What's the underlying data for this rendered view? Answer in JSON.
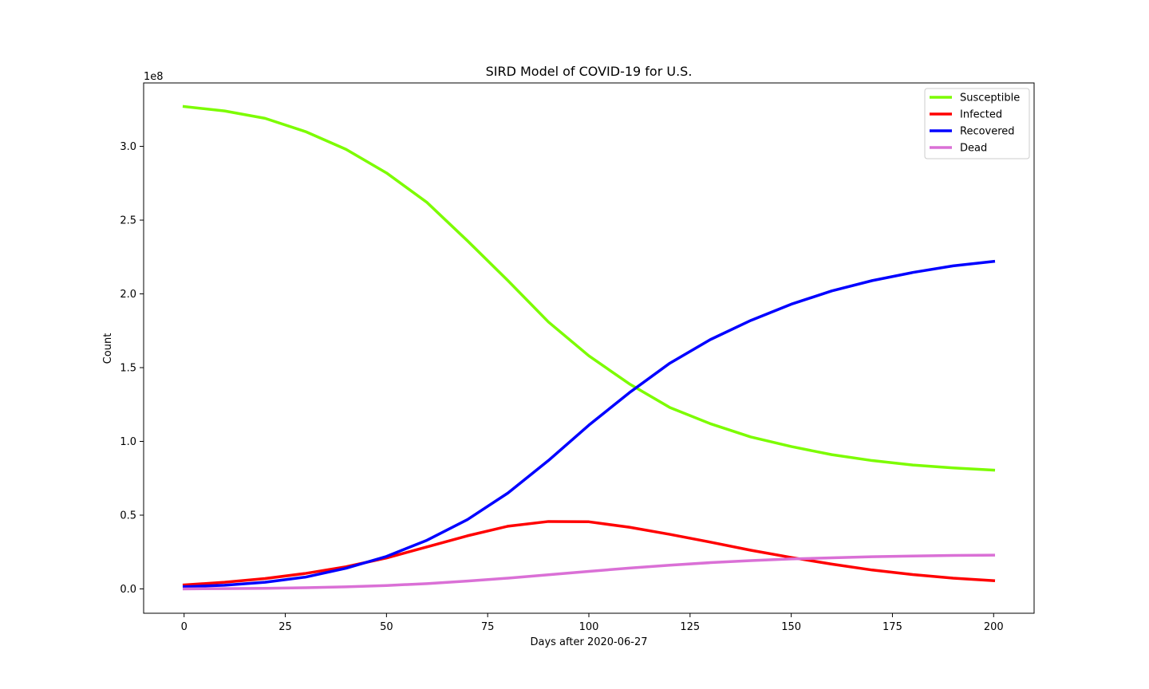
{
  "chart_data": {
    "type": "line",
    "title": "SIRD Model of COVID-19 for U.S.",
    "xlabel": "Days after 2020-06-27",
    "ylabel": "Count",
    "y_offset_label": "1e8",
    "xlim": [
      -10,
      210
    ],
    "ylim": [
      -0.165,
      3.43
    ],
    "x_ticks": [
      0,
      25,
      50,
      75,
      100,
      125,
      150,
      175,
      200
    ],
    "x_tick_labels": [
      "0",
      "25",
      "50",
      "75",
      "100",
      "125",
      "150",
      "175",
      "200"
    ],
    "y_ticks": [
      0.0,
      0.5,
      1.0,
      1.5,
      2.0,
      2.5,
      3.0
    ],
    "y_tick_labels": [
      "0.0",
      "0.5",
      "1.0",
      "1.5",
      "2.0",
      "2.5",
      "3.0"
    ],
    "y_scale_note": "values in units of 1e8",
    "grid": false,
    "legend_position": "top-right",
    "x": [
      0,
      10,
      20,
      30,
      40,
      50,
      60,
      70,
      80,
      90,
      100,
      110,
      120,
      130,
      140,
      150,
      160,
      170,
      180,
      190,
      200
    ],
    "series": [
      {
        "name": "Susceptible",
        "color": "#7cfc00",
        "values": [
          3.27,
          3.24,
          3.19,
          3.1,
          2.98,
          2.82,
          2.62,
          2.36,
          2.09,
          1.81,
          1.58,
          1.39,
          1.23,
          1.12,
          1.03,
          0.965,
          0.91,
          0.87,
          0.84,
          0.82,
          0.805
        ]
      },
      {
        "name": "Infected",
        "color": "#ff0000",
        "values": [
          0.027,
          0.045,
          0.07,
          0.105,
          0.15,
          0.21,
          0.285,
          0.36,
          0.425,
          0.457,
          0.455,
          0.418,
          0.37,
          0.317,
          0.262,
          0.213,
          0.168,
          0.128,
          0.097,
          0.073,
          0.056
        ]
      },
      {
        "name": "Recovered",
        "color": "#0000ff",
        "values": [
          0.015,
          0.025,
          0.045,
          0.08,
          0.14,
          0.22,
          0.33,
          0.47,
          0.65,
          0.87,
          1.11,
          1.33,
          1.53,
          1.69,
          1.82,
          1.93,
          2.02,
          2.09,
          2.145,
          2.19,
          2.22
        ]
      },
      {
        "name": "Dead",
        "color": "#da70d6",
        "values": [
          0.0,
          0.002,
          0.004,
          0.008,
          0.014,
          0.023,
          0.036,
          0.053,
          0.073,
          0.096,
          0.119,
          0.141,
          0.161,
          0.178,
          0.192,
          0.203,
          0.211,
          0.218,
          0.223,
          0.227,
          0.229
        ]
      }
    ]
  }
}
